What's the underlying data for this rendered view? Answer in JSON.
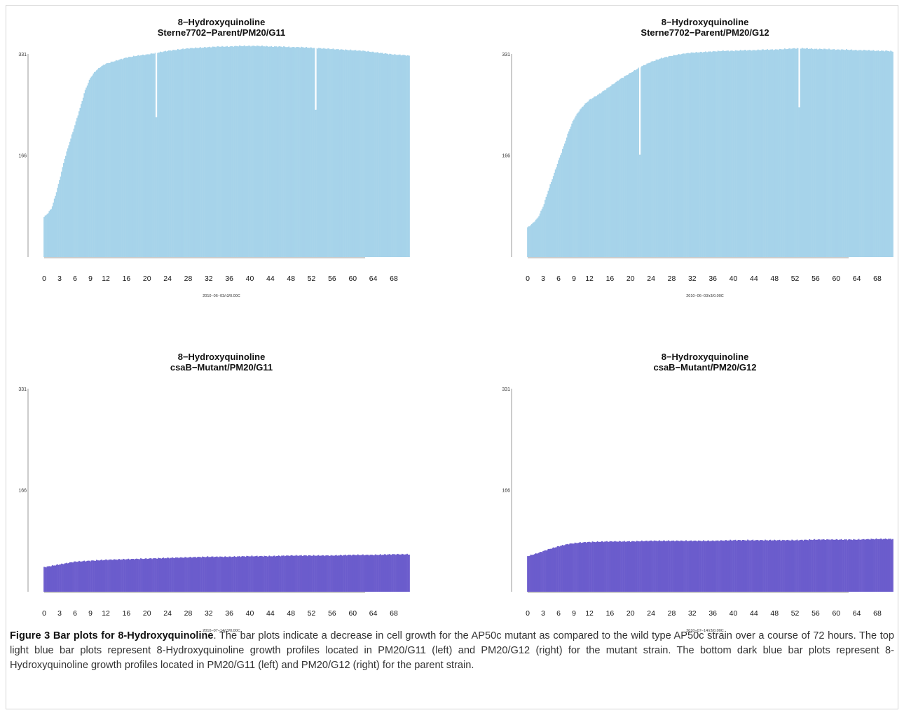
{
  "figure": {
    "caption_bold": "Figure 3 Bar plots for 8-Hydroxyquinoline",
    "caption_text": ". The bar plots indicate a decrease in cell growth for the AP50c mutant as compared to the wild type AP50c strain over a course of 72 hours. The top light blue bar plots represent 8-Hydroxyquinoline growth profiles located in PM20/G11 (left) and PM20/G12 (right) for the mutant strain. The bottom dark blue bar plots represent 8-Hydroxyquinoline growth profiles located in PM20/G11 (left) and PM20/G12 (right) for the parent strain."
  },
  "colors": {
    "light_bar": "#a6d3ea",
    "dark_bar": "#6b5ccc",
    "axis": "#999999"
  },
  "chart_data": [
    {
      "type": "bar",
      "title": "8−Hydroxyquinoline",
      "subtitle": "Sterne7702−Parent/PM20/G11",
      "xlabel": "2010−06−03/r3/0.00C",
      "ylabel": "",
      "ylim": [
        0,
        331
      ],
      "yticks": [
        "331",
        "166"
      ],
      "xticks": [
        "0",
        "3",
        "6",
        "9",
        "12",
        "16",
        "20",
        "24",
        "28",
        "32",
        "36",
        "40",
        "44",
        "48",
        "52",
        "56",
        "60",
        "64",
        "68"
      ],
      "xrange": [
        0,
        71
      ],
      "color": "#a6d3ea",
      "series": [
        {
          "x": [
            0,
            0.8,
            1.5,
            2.2,
            3,
            4,
            5,
            6,
            7,
            8,
            9,
            10,
            11,
            12,
            14,
            16,
            18,
            20,
            22,
            24,
            26,
            28,
            30,
            32,
            34,
            36,
            38,
            40,
            42,
            44,
            46,
            48,
            50,
            52,
            54,
            56,
            58,
            60,
            62,
            64,
            66,
            68,
            70,
            71
          ],
          "y": [
            65,
            72,
            80,
            100,
            125,
            160,
            188,
            215,
            243,
            272,
            292,
            303,
            310,
            315,
            320,
            325,
            328,
            330,
            333,
            336,
            338,
            340,
            341,
            342,
            343,
            343,
            344,
            344,
            344,
            343,
            343,
            342,
            342,
            341,
            340,
            339,
            338,
            337,
            336,
            334,
            332,
            330,
            329,
            328
          ]
        }
      ],
      "dips": [
        {
          "x": 21.8,
          "y": 228
        },
        {
          "x": 52.8,
          "y": 240
        }
      ]
    },
    {
      "type": "bar",
      "title": "8−Hydroxyquinoline",
      "subtitle": "Sterne7702−Parent/PM20/G12",
      "xlabel": "2010−06−03/r3/0.00C",
      "ylabel": "",
      "ylim": [
        0,
        331
      ],
      "yticks": [
        "331",
        "166"
      ],
      "xticks": [
        "0",
        "3",
        "6",
        "9",
        "12",
        "16",
        "20",
        "24",
        "28",
        "32",
        "36",
        "40",
        "44",
        "48",
        "52",
        "56",
        "60",
        "64",
        "68"
      ],
      "xrange": [
        0,
        71
      ],
      "color": "#a6d3ea",
      "series": [
        {
          "x": [
            0,
            1,
            2,
            3,
            4,
            5,
            6,
            7,
            8,
            9,
            10,
            11,
            12,
            14,
            16,
            18,
            20,
            22,
            24,
            26,
            28,
            30,
            32,
            34,
            36,
            38,
            40,
            42,
            44,
            46,
            48,
            50,
            52,
            54,
            56,
            58,
            60,
            62,
            64,
            66,
            68,
            70,
            71
          ],
          "y": [
            48,
            55,
            64,
            82,
            108,
            132,
            157,
            180,
            205,
            225,
            238,
            248,
            256,
            266,
            278,
            290,
            300,
            310,
            318,
            324,
            328,
            331,
            333,
            334,
            335,
            336,
            336,
            337,
            337,
            338,
            338,
            339,
            340,
            340,
            339,
            339,
            338,
            338,
            337,
            337,
            336,
            336,
            335
          ]
        }
      ],
      "dips": [
        {
          "x": 21.8,
          "y": 167
        },
        {
          "x": 52.8,
          "y": 244
        }
      ]
    },
    {
      "type": "bar",
      "title": "8−Hydroxyquinoline",
      "subtitle": "csaB−Mutant/PM20/G11",
      "xlabel": "2010−07−14/r3/0.00C",
      "ylabel": "",
      "ylim": [
        0,
        331
      ],
      "yticks": [
        "331",
        "166"
      ],
      "xticks": [
        "0",
        "3",
        "6",
        "9",
        "12",
        "16",
        "20",
        "24",
        "28",
        "32",
        "36",
        "40",
        "44",
        "48",
        "52",
        "56",
        "60",
        "64",
        "68"
      ],
      "xrange": [
        0,
        71
      ],
      "color": "#6b5ccc",
      "series": [
        {
          "x": [
            0,
            2,
            4,
            6,
            8,
            10,
            12,
            16,
            20,
            24,
            28,
            32,
            36,
            40,
            44,
            48,
            52,
            56,
            60,
            64,
            68,
            71
          ],
          "y": [
            40,
            43,
            46,
            49,
            50,
            51,
            52,
            53,
            54,
            55,
            56,
            57,
            57,
            58,
            58,
            59,
            59,
            59,
            60,
            60,
            61,
            61
          ]
        }
      ]
    },
    {
      "type": "bar",
      "title": "8−Hydroxyquinoline",
      "subtitle": "csaB−Mutant/PM20/G12",
      "xlabel": "2010−07−14/r3/0.00C",
      "ylabel": "",
      "ylim": [
        0,
        331
      ],
      "yticks": [
        "331",
        "166"
      ],
      "xticks": [
        "0",
        "3",
        "6",
        "9",
        "12",
        "16",
        "20",
        "24",
        "28",
        "32",
        "36",
        "40",
        "44",
        "48",
        "52",
        "56",
        "60",
        "64",
        "68"
      ],
      "xrange": [
        0,
        71
      ],
      "color": "#6b5ccc",
      "series": [
        {
          "x": [
            0,
            2,
            4,
            6,
            8,
            10,
            12,
            16,
            20,
            24,
            28,
            32,
            36,
            40,
            44,
            48,
            52,
            56,
            60,
            64,
            68,
            71
          ],
          "y": [
            58,
            63,
            69,
            74,
            78,
            80,
            81,
            82,
            82,
            83,
            83,
            83,
            83,
            84,
            84,
            84,
            84,
            85,
            85,
            85,
            86,
            86
          ]
        }
      ]
    }
  ]
}
